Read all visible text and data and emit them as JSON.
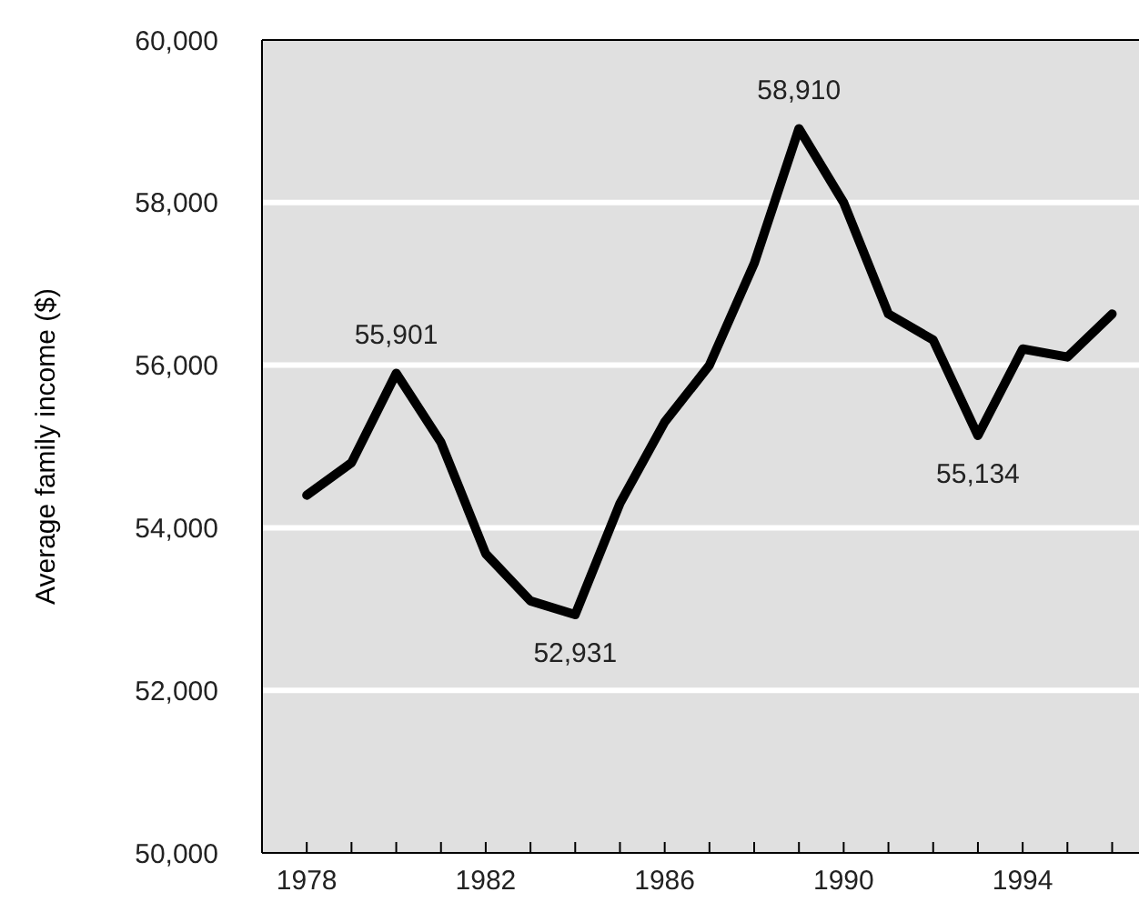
{
  "chart_data": {
    "type": "line",
    "ylabel": "Average family income ($)",
    "x": [
      1978,
      1979,
      1980,
      1981,
      1982,
      1983,
      1984,
      1985,
      1986,
      1987,
      1988,
      1989,
      1990,
      1991,
      1992,
      1993,
      1994,
      1995,
      1996
    ],
    "series": [
      {
        "color": "#000000",
        "values": [
          54400,
          54800,
          55901,
          55050,
          53680,
          53100,
          52931,
          54300,
          55300,
          56000,
          57250,
          58910,
          58000,
          56630,
          56310,
          55134,
          56200,
          56100,
          56630
        ]
      }
    ],
    "xlim": [
      1977,
      1996.6
    ],
    "xticks": [
      1978,
      {
        "value": 1979,
        "label": null
      },
      {
        "value": 1980,
        "label": null
      },
      {
        "value": 1981,
        "label": null
      },
      1982,
      {
        "value": 1983,
        "label": null
      },
      {
        "value": 1984,
        "label": null
      },
      {
        "value": 1985,
        "label": null
      },
      1986,
      {
        "value": 1987,
        "label": null
      },
      {
        "value": 1988,
        "label": null
      },
      {
        "value": 1989,
        "label": null
      },
      1990,
      {
        "value": 1991,
        "label": null
      },
      {
        "value": 1992,
        "label": null
      },
      {
        "value": 1993,
        "label": null
      },
      1994,
      {
        "value": 1995,
        "label": null
      },
      {
        "value": 1996,
        "label": null
      }
    ],
    "ylim": [
      50000,
      60000
    ],
    "yticks": [
      {
        "value": 50000,
        "label": "50,000"
      },
      {
        "value": 52000,
        "label": "52,000"
      },
      {
        "value": 54000,
        "label": "54,000"
      },
      {
        "value": 56000,
        "label": "56,000"
      },
      {
        "value": 58000,
        "label": "58,000"
      },
      {
        "value": 60000,
        "label": "60,000"
      }
    ],
    "grid": "y",
    "marker": "none",
    "line_style": "solid",
    "annotations": [
      {
        "text": "55,901",
        "x": 1980,
        "y": 55901
      },
      {
        "text": "52,931",
        "x": 1984,
        "y": 52931
      },
      {
        "text": "58,910",
        "x": 1989,
        "y": 58910
      },
      {
        "text": "55,134",
        "x": 1993,
        "y": 55134
      }
    ]
  }
}
